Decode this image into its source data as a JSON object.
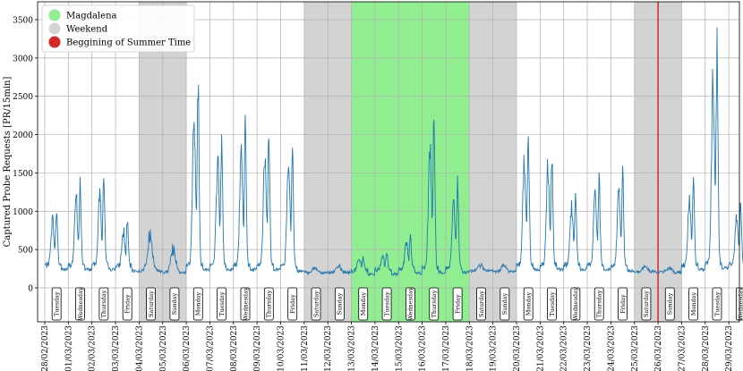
{
  "chart_data": {
    "type": "line",
    "title": "",
    "xlabel": "",
    "ylabel": "Captured Probe Requests [PR/15min]",
    "ylim": [
      -500,
      3750
    ],
    "yticks": [
      0,
      500,
      1000,
      1500,
      2000,
      2500,
      3000,
      3500
    ],
    "grid": true,
    "legend_position": "top-left",
    "legend": [
      {
        "label": "Magdalena",
        "color": "#90ee90"
      },
      {
        "label": "Weekend",
        "color": "#d3d3d3"
      },
      {
        "label": "Beggining of Summer Time",
        "color": "#d62728"
      }
    ],
    "line_color": "#1f77b4",
    "days": [
      {
        "date": "28/02/2023",
        "weekday": "Tuesday",
        "type": "work",
        "peak": 1080,
        "base": 300
      },
      {
        "date": "01/03/2023",
        "weekday": "Wednesday",
        "type": "work",
        "peak": 1460,
        "base": 300
      },
      {
        "date": "02/03/2023",
        "weekday": "Thursday",
        "type": "work",
        "peak": 1560,
        "base": 300
      },
      {
        "date": "03/03/2023",
        "weekday": "Friday",
        "type": "work",
        "peak": 900,
        "base": 280
      },
      {
        "date": "04/03/2023",
        "weekday": "Saturday",
        "type": "weekend",
        "peak": 820,
        "base": 220
      },
      {
        "date": "05/03/2023",
        "weekday": "Sunday",
        "type": "weekend",
        "peak": 600,
        "base": 200
      },
      {
        "date": "06/03/2023",
        "weekday": "Monday",
        "type": "work",
        "peak": 2960,
        "base": 300
      },
      {
        "date": "07/03/2023",
        "weekday": "Tuesday",
        "type": "work",
        "peak": 2090,
        "base": 300
      },
      {
        "date": "08/03/2023",
        "weekday": "Wednesday",
        "type": "work",
        "peak": 2310,
        "base": 300
      },
      {
        "date": "09/03/2023",
        "weekday": "Thursday",
        "type": "work",
        "peak": 2140,
        "base": 300
      },
      {
        "date": "10/03/2023",
        "weekday": "Friday",
        "type": "work",
        "peak": 2060,
        "base": 280
      },
      {
        "date": "11/03/2023",
        "weekday": "Saturday",
        "type": "weekend",
        "peak": 280,
        "base": 200
      },
      {
        "date": "12/03/2023",
        "weekday": "Sunday",
        "type": "weekend",
        "peak": 300,
        "base": 200
      },
      {
        "date": "13/03/2023",
        "weekday": "Monday",
        "type": "holiday",
        "peak": 420,
        "base": 230
      },
      {
        "date": "14/03/2023",
        "weekday": "Tuesday",
        "type": "holiday",
        "peak": 480,
        "base": 240
      },
      {
        "date": "15/03/2023",
        "weekday": "Wednesday",
        "type": "holiday",
        "peak": 720,
        "base": 250
      },
      {
        "date": "16/03/2023",
        "weekday": "Thursday",
        "type": "holiday",
        "peak": 2420,
        "base": 260
      },
      {
        "date": "17/03/2023",
        "weekday": "Friday",
        "type": "holiday",
        "peak": 1480,
        "base": 260
      },
      {
        "date": "18/03/2023",
        "weekday": "Saturday",
        "type": "weekend",
        "peak": 330,
        "base": 220
      },
      {
        "date": "19/03/2023",
        "weekday": "Sunday",
        "type": "weekend",
        "peak": 320,
        "base": 210
      },
      {
        "date": "20/03/2023",
        "weekday": "Monday",
        "type": "work",
        "peak": 2160,
        "base": 300
      },
      {
        "date": "21/03/2023",
        "weekday": "Tuesday",
        "type": "work",
        "peak": 1980,
        "base": 300
      },
      {
        "date": "22/03/2023",
        "weekday": "Wednesday",
        "type": "work",
        "peak": 1300,
        "base": 300
      },
      {
        "date": "23/03/2023",
        "weekday": "Thursday",
        "type": "work",
        "peak": 1550,
        "base": 300
      },
      {
        "date": "24/03/2023",
        "weekday": "Friday",
        "type": "work",
        "peak": 1620,
        "base": 280
      },
      {
        "date": "25/03/2023",
        "weekday": "Saturday",
        "type": "weekend",
        "peak": 300,
        "base": 210
      },
      {
        "date": "26/03/2023",
        "weekday": "Sunday",
        "type": "weekend",
        "peak": 280,
        "base": 200
      },
      {
        "date": "27/03/2023",
        "weekday": "Monday",
        "type": "work",
        "peak": 1460,
        "base": 300
      },
      {
        "date": "28/03/2023",
        "weekday": "Tuesday",
        "type": "work",
        "peak": 3460,
        "base": 320
      },
      {
        "date": "29/03/2023",
        "weekday": "Wednesday",
        "type": "work",
        "peak": 1200,
        "base": 300
      }
    ],
    "summer_time_start": "26/03/2023"
  }
}
